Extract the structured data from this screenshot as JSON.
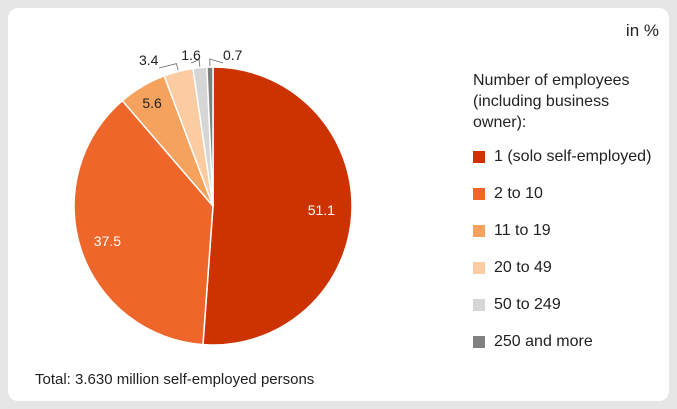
{
  "unit_label": "in %",
  "legend_title": "Number of employees\n(including business\nowner):",
  "footnote": "Total: 3.630 million self-employed persons",
  "chart_data": {
    "type": "pie",
    "unit": "%",
    "categories": [
      "1 (solo self-employed)",
      "2 to 10",
      "11 to 19",
      "20 to 49",
      "50 to 249",
      "250 and more"
    ],
    "values": [
      51.1,
      37.5,
      5.6,
      3.4,
      1.6,
      0.7
    ],
    "value_labels": [
      "51.1",
      "37.5",
      "5.6",
      "3.4",
      "1.6",
      "0.7"
    ],
    "colors": [
      "#cc3300",
      "#ee6629",
      "#f4a25e",
      "#fbcba2",
      "#d6d6d6",
      "#808080"
    ],
    "legend_position": "right"
  }
}
